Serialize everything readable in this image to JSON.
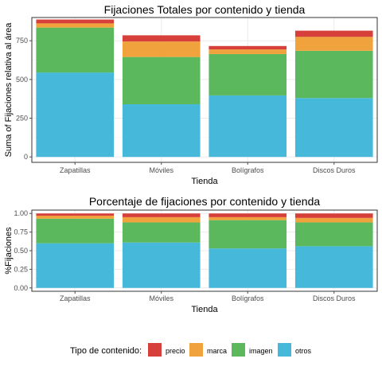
{
  "colors": {
    "precio": "#d7403a",
    "marca": "#f0a33c",
    "imagen": "#5cb85c",
    "otros": "#46b8da",
    "panel_border": "#333333",
    "grid": "#ebebeb",
    "tick": "#4d4d4d"
  },
  "legend": {
    "title": "Tipo de contenido:",
    "items": [
      {
        "key": "precio",
        "label": "precio"
      },
      {
        "key": "marca",
        "label": "marca"
      },
      {
        "key": "imagen",
        "label": "imagen"
      },
      {
        "key": "otros",
        "label": "otros"
      }
    ]
  },
  "chart_data": [
    {
      "type": "bar",
      "stacked": true,
      "title": "Fijaciones Totales por contenido y tienda",
      "xlabel": "Tienda",
      "ylabel": "Suma of Fijaciones relativa al área",
      "ylim": [
        -35,
        900
      ],
      "yticks": [
        0,
        250,
        500,
        750
      ],
      "yticklabels": [
        "0",
        "250",
        "500",
        "750"
      ],
      "grid": true,
      "categories": [
        "Zapatillas",
        "Móviles",
        "Bolígrafos",
        "Discos Duros"
      ],
      "series": [
        {
          "name": "otros",
          "values": [
            545,
            340,
            397,
            380
          ]
        },
        {
          "name": "imagen",
          "values": [
            290,
            305,
            267,
            305
          ]
        },
        {
          "name": "marca",
          "values": [
            27,
            100,
            30,
            90
          ]
        },
        {
          "name": "precio",
          "values": [
            25,
            40,
            22,
            40
          ]
        }
      ]
    },
    {
      "type": "bar",
      "stacked": true,
      "title": "Porcentaje de fijaciones por contenido y tienda",
      "xlabel": "Tienda",
      "ylabel": "%Fijaciones",
      "ylim": [
        -0.045,
        1.045
      ],
      "yticks": [
        0,
        0.25,
        0.5,
        0.75,
        1.0
      ],
      "yticklabels": [
        "0.00",
        "0.25",
        "0.50",
        "0.75",
        "1.00"
      ],
      "grid": true,
      "categories": [
        "Zapatillas",
        "Móviles",
        "Bolígrafos",
        "Discos Duros"
      ],
      "series": [
        {
          "name": "otros",
          "values": [
            0.6,
            0.61,
            0.53,
            0.56
          ]
        },
        {
          "name": "imagen",
          "values": [
            0.33,
            0.27,
            0.38,
            0.32
          ]
        },
        {
          "name": "marca",
          "values": [
            0.04,
            0.07,
            0.04,
            0.06
          ]
        },
        {
          "name": "precio",
          "values": [
            0.03,
            0.05,
            0.05,
            0.06
          ]
        }
      ]
    }
  ]
}
